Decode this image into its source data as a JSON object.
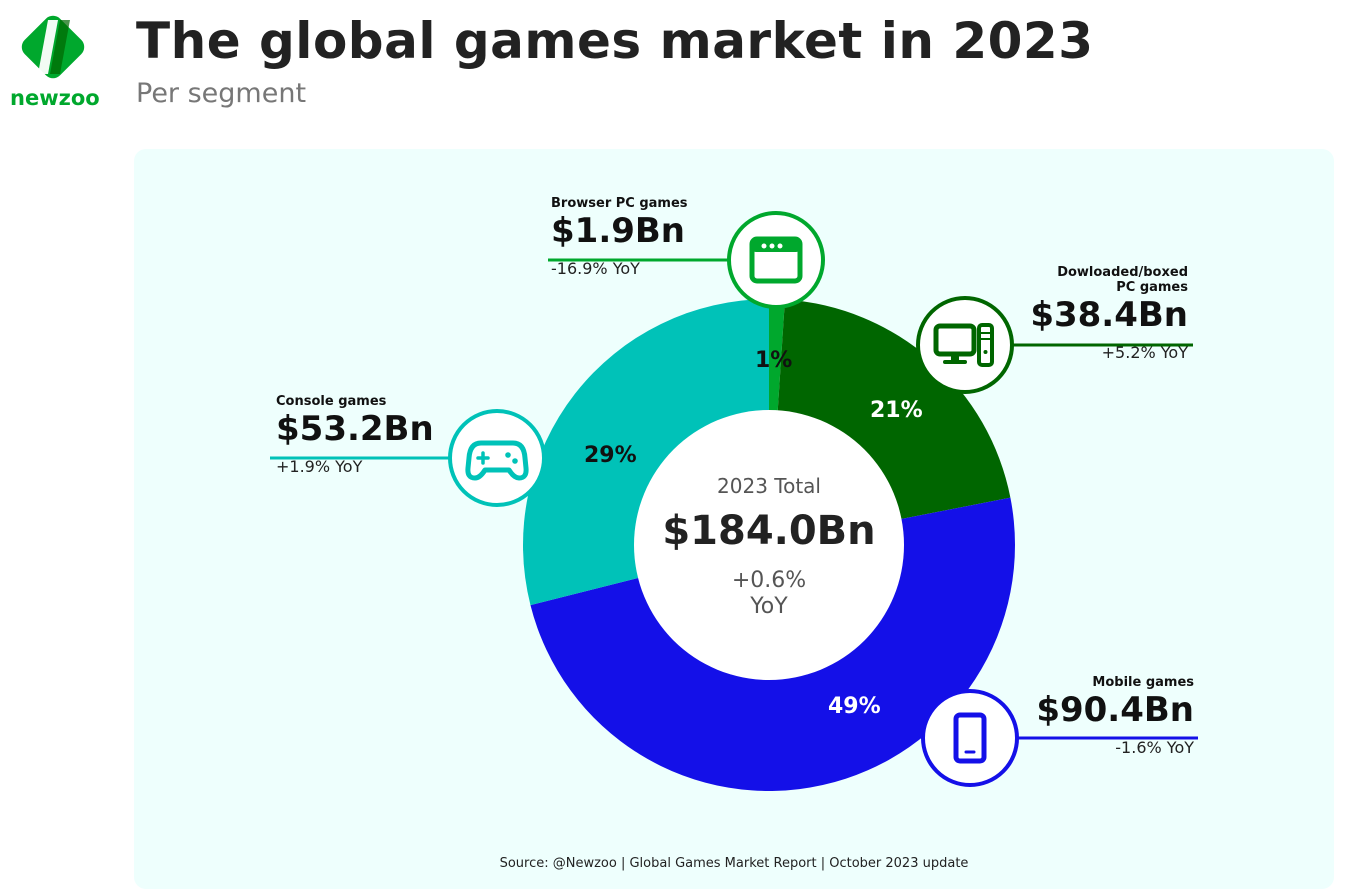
{
  "header": {
    "title": "The global games market in 2023",
    "subtitle": "Per segment",
    "logo_text": "newzoo"
  },
  "center": {
    "label": "2023 Total",
    "total": "$184.0Bn",
    "yoy": "+0.6%",
    "yoy_unit": "YoY"
  },
  "source": "Source: @Newzoo | Global Games Market Report | October 2023 update",
  "colors": {
    "browser": "#00a82d",
    "downloaded": "#006600",
    "mobile": "#1410e8",
    "console": "#00c2b8",
    "panel": "#eefffd"
  },
  "chart_data": {
    "type": "pie",
    "donut": true,
    "title": "The global games market in 2023",
    "subtitle": "Per segment",
    "unit": "$Bn",
    "slices": [
      {
        "name": "Browser PC games",
        "value": 1.9,
        "value_label": "$1.9Bn",
        "percent_label": "1%",
        "yoy": "-16.9% YoY",
        "color": "#00a82d",
        "icon": "browser-window-icon"
      },
      {
        "name_lines": [
          "Dowloaded/boxed",
          "PC games"
        ],
        "name": "Dowloaded/boxed PC games",
        "value": 38.4,
        "value_label": "$38.4Bn",
        "percent_label": "21%",
        "yoy": "+5.2% YoY",
        "color": "#006600",
        "icon": "desktop-computer-icon"
      },
      {
        "name": "Mobile games",
        "value": 90.4,
        "value_label": "$90.4Bn",
        "percent_label": "49%",
        "yoy": "-1.6% YoY",
        "color": "#1410e8",
        "icon": "smartphone-icon"
      },
      {
        "name": "Console games",
        "value": 53.2,
        "value_label": "$53.2Bn",
        "percent_label": "29%",
        "yoy": "+1.9% YoY",
        "color": "#00c2b8",
        "icon": "gamepad-icon"
      }
    ]
  }
}
